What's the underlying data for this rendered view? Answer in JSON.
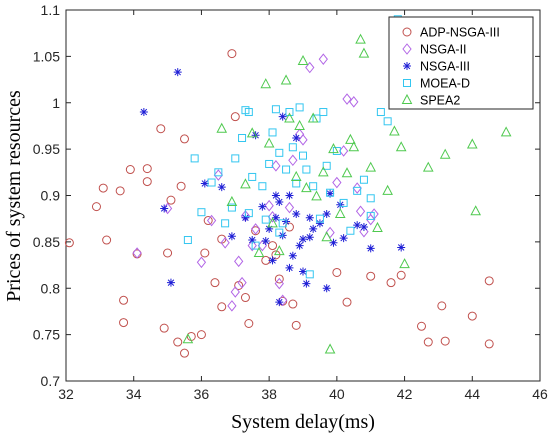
{
  "chart_data": {
    "type": "scatter",
    "xlabel": "System delay(ms)",
    "ylabel": "Prices of system resources",
    "xlim": [
      32,
      46
    ],
    "ylim": [
      0.7,
      1.1
    ],
    "xticks": [
      "32",
      "34",
      "36",
      "38",
      "40",
      "42",
      "44",
      "46"
    ],
    "yticks": [
      "0.7",
      "0.75",
      "0.8",
      "0.85",
      "0.9",
      "0.95",
      "1",
      "1.05",
      "1.1"
    ],
    "grid": false,
    "legend_position": "top-right",
    "series": [
      {
        "name": "ADP-NSGA-III",
        "marker": "circle",
        "color": "#c0504d",
        "points": [
          [
            32.1,
            0.849
          ],
          [
            32.9,
            0.888
          ],
          [
            33.1,
            0.908
          ],
          [
            33.2,
            0.852
          ],
          [
            33.6,
            0.905
          ],
          [
            33.7,
            0.787
          ],
          [
            33.7,
            0.763
          ],
          [
            33.9,
            0.928
          ],
          [
            34.1,
            0.837
          ],
          [
            34.4,
            0.929
          ],
          [
            34.4,
            0.915
          ],
          [
            34.8,
            0.972
          ],
          [
            34.9,
            0.757
          ],
          [
            35.0,
            0.838
          ],
          [
            35.1,
            0.895
          ],
          [
            35.3,
            0.742
          ],
          [
            35.4,
            0.91
          ],
          [
            35.5,
            0.961
          ],
          [
            35.5,
            0.73
          ],
          [
            35.7,
            0.748
          ],
          [
            36.0,
            0.75
          ],
          [
            36.1,
            0.838
          ],
          [
            36.2,
            0.873
          ],
          [
            36.4,
            0.806
          ],
          [
            36.6,
            0.853
          ],
          [
            36.6,
            0.78
          ],
          [
            36.9,
            1.053
          ],
          [
            37.0,
            0.985
          ],
          [
            37.1,
            0.803
          ],
          [
            37.3,
            0.79
          ],
          [
            37.4,
            0.762
          ],
          [
            37.6,
            0.862
          ],
          [
            37.9,
            0.83
          ],
          [
            38.1,
            0.846
          ],
          [
            38.2,
            0.836
          ],
          [
            38.3,
            0.81
          ],
          [
            38.4,
            0.786
          ],
          [
            38.6,
            0.866
          ],
          [
            38.7,
            0.783
          ],
          [
            38.8,
            0.76
          ],
          [
            40.0,
            0.817
          ],
          [
            40.3,
            0.785
          ],
          [
            41.0,
            0.813
          ],
          [
            41.6,
            0.806
          ],
          [
            41.9,
            0.814
          ],
          [
            42.5,
            0.759
          ],
          [
            42.7,
            0.742
          ],
          [
            43.1,
            0.781
          ],
          [
            43.2,
            0.743
          ],
          [
            44.0,
            0.77
          ],
          [
            44.5,
            0.808
          ],
          [
            44.5,
            0.74
          ]
        ]
      },
      {
        "name": "NSGA-II",
        "marker": "diamond",
        "color": "#b266e6",
        "points": [
          [
            34.1,
            0.838
          ],
          [
            35.0,
            0.886
          ],
          [
            36.0,
            0.828
          ],
          [
            36.3,
            0.873
          ],
          [
            36.5,
            0.922
          ],
          [
            36.7,
            0.849
          ],
          [
            36.9,
            0.781
          ],
          [
            37.0,
            0.796
          ],
          [
            37.1,
            0.829
          ],
          [
            37.2,
            0.806
          ],
          [
            37.3,
            0.878
          ],
          [
            37.5,
            0.846
          ],
          [
            37.6,
            0.864
          ],
          [
            37.8,
            0.846
          ],
          [
            38.0,
            0.889
          ],
          [
            38.1,
            0.877
          ],
          [
            38.2,
            0.932
          ],
          [
            38.3,
            0.805
          ],
          [
            38.4,
            0.787
          ],
          [
            38.6,
            0.887
          ],
          [
            38.7,
            0.938
          ],
          [
            38.9,
            0.966
          ],
          [
            39.0,
            0.96
          ],
          [
            39.2,
            1.038
          ],
          [
            39.6,
            1.047
          ],
          [
            39.8,
            0.86
          ],
          [
            40.0,
            0.914
          ],
          [
            40.2,
            0.948
          ],
          [
            40.3,
            1.004
          ],
          [
            40.5,
            1.001
          ],
          [
            40.6,
            0.908
          ],
          [
            40.7,
            0.883
          ],
          [
            40.8,
            0.861
          ],
          [
            41.0,
            0.874
          ],
          [
            41.1,
            0.88
          ]
        ]
      },
      {
        "name": "NSGA-III",
        "marker": "asterisk",
        "color": "#1f1fd6",
        "points": [
          [
            34.3,
            0.99
          ],
          [
            34.9,
            0.886
          ],
          [
            35.1,
            0.806
          ],
          [
            35.3,
            1.033
          ],
          [
            36.1,
            0.913
          ],
          [
            36.6,
            0.909
          ],
          [
            36.9,
            0.856
          ],
          [
            37.3,
            0.876
          ],
          [
            37.5,
            0.852
          ],
          [
            37.6,
            0.965
          ],
          [
            37.8,
            0.888
          ],
          [
            37.9,
            0.851
          ],
          [
            38.0,
            0.864
          ],
          [
            38.1,
            0.83
          ],
          [
            38.2,
            0.9
          ],
          [
            38.2,
            0.876
          ],
          [
            38.3,
            0.785
          ],
          [
            38.3,
            0.893
          ],
          [
            38.4,
            0.857
          ],
          [
            38.4,
            0.985
          ],
          [
            38.5,
            0.872
          ],
          [
            38.6,
            0.9
          ],
          [
            38.6,
            0.822
          ],
          [
            38.7,
            0.835
          ],
          [
            38.8,
            0.88
          ],
          [
            38.8,
            0.962
          ],
          [
            38.9,
            0.846
          ],
          [
            39.0,
            0.853
          ],
          [
            39.0,
            0.818
          ],
          [
            39.1,
            0.805
          ],
          [
            39.2,
            0.876
          ],
          [
            39.2,
            0.855
          ],
          [
            39.3,
            0.864
          ],
          [
            39.5,
            0.87
          ],
          [
            39.7,
            0.88
          ],
          [
            39.7,
            0.8
          ],
          [
            39.8,
            0.902
          ],
          [
            39.9,
            0.849
          ],
          [
            40.1,
            0.89
          ],
          [
            40.2,
            0.854
          ],
          [
            40.6,
            0.868
          ],
          [
            40.8,
            0.866
          ],
          [
            41.0,
            0.843
          ],
          [
            41.9,
            0.844
          ]
        ]
      },
      {
        "name": "MOEA-D",
        "marker": "square",
        "color": "#33c6f0",
        "points": [
          [
            35.6,
            0.852
          ],
          [
            35.8,
            0.94
          ],
          [
            36.0,
            0.882
          ],
          [
            36.3,
            0.914
          ],
          [
            36.5,
            0.925
          ],
          [
            36.7,
            0.87
          ],
          [
            36.9,
            0.887
          ],
          [
            37.0,
            0.94
          ],
          [
            37.2,
            0.962
          ],
          [
            37.3,
            0.992
          ],
          [
            37.4,
            0.881
          ],
          [
            37.4,
            0.99
          ],
          [
            37.5,
            0.92
          ],
          [
            37.6,
            0.846
          ],
          [
            37.8,
            0.91
          ],
          [
            37.9,
            0.874
          ],
          [
            38.0,
            0.934
          ],
          [
            38.1,
            0.968
          ],
          [
            38.2,
            0.993
          ],
          [
            38.3,
            0.86
          ],
          [
            38.3,
            0.946
          ],
          [
            38.4,
            0.87
          ],
          [
            38.5,
            0.928
          ],
          [
            38.6,
            0.99
          ],
          [
            38.7,
            0.952
          ],
          [
            38.8,
            0.913
          ],
          [
            38.9,
            0.995
          ],
          [
            39.0,
            0.943
          ],
          [
            39.1,
            0.928
          ],
          [
            39.2,
            0.815
          ],
          [
            39.3,
            0.91
          ],
          [
            39.4,
            0.983
          ],
          [
            39.5,
            0.875
          ],
          [
            39.6,
            0.99
          ],
          [
            39.7,
            0.932
          ],
          [
            39.8,
            0.903
          ],
          [
            40.0,
            0.948
          ],
          [
            40.2,
            0.892
          ],
          [
            40.4,
            0.862
          ],
          [
            40.6,
            0.905
          ],
          [
            40.8,
            0.917
          ],
          [
            41.0,
            0.897
          ],
          [
            41.0,
            0.878
          ],
          [
            41.3,
            0.99
          ],
          [
            41.5,
            0.98
          ],
          [
            41.8,
            1.09
          ]
        ]
      },
      {
        "name": "SPEA2",
        "marker": "triangle",
        "color": "#4fc94f",
        "points": [
          [
            35.6,
            0.745
          ],
          [
            36.6,
            0.972
          ],
          [
            36.9,
            0.893
          ],
          [
            37.3,
            0.912
          ],
          [
            37.5,
            0.967
          ],
          [
            37.7,
            0.838
          ],
          [
            37.9,
            1.02
          ],
          [
            38.0,
            0.956
          ],
          [
            38.1,
            0.87
          ],
          [
            38.3,
            0.84
          ],
          [
            38.5,
            1.024
          ],
          [
            38.6,
            0.983
          ],
          [
            38.8,
            0.92
          ],
          [
            38.9,
            0.975
          ],
          [
            39.0,
            1.045
          ],
          [
            39.1,
            0.908
          ],
          [
            39.3,
            0.983
          ],
          [
            39.4,
            0.899
          ],
          [
            39.6,
            0.925
          ],
          [
            39.7,
            0.855
          ],
          [
            39.8,
            0.734
          ],
          [
            39.9,
            0.95
          ],
          [
            40.1,
            0.88
          ],
          [
            40.3,
            0.924
          ],
          [
            40.4,
            0.96
          ],
          [
            40.5,
            0.952
          ],
          [
            40.7,
            1.068
          ],
          [
            40.8,
            1.053
          ],
          [
            41.0,
            0.93
          ],
          [
            41.2,
            0.865
          ],
          [
            41.5,
            0.905
          ],
          [
            41.7,
            0.969
          ],
          [
            41.9,
            0.952
          ],
          [
            42.0,
            0.826
          ],
          [
            42.7,
            0.93
          ],
          [
            43.2,
            0.944
          ],
          [
            44.0,
            0.955
          ],
          [
            44.1,
            0.883
          ],
          [
            45.0,
            0.968
          ]
        ]
      }
    ]
  }
}
